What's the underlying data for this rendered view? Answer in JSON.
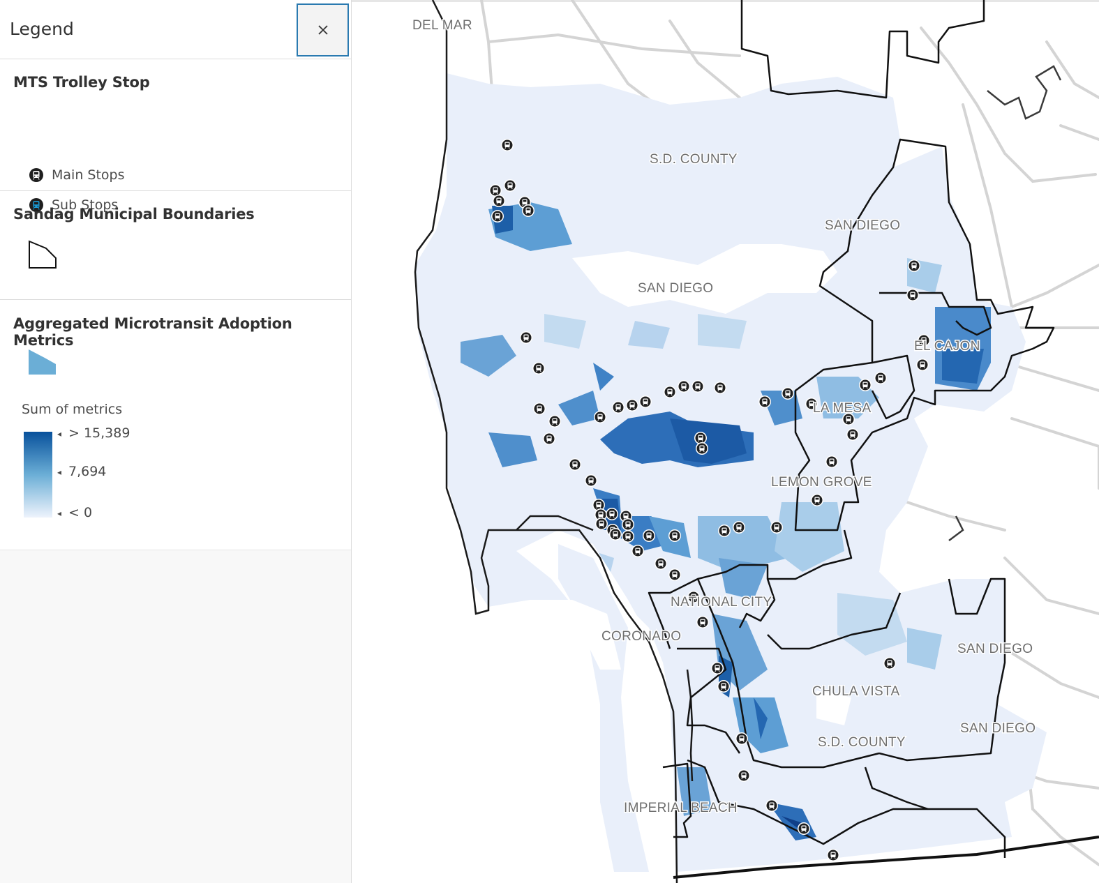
{
  "legend": {
    "title": "Legend",
    "close_icon": "close-icon",
    "layers": {
      "trolley": {
        "title": "MTS Trolley Stop",
        "items": [
          {
            "label": "Main Stops",
            "icon": "trolley-icon",
            "color": "#1f1f1f"
          },
          {
            "label": "Sub Stops",
            "icon": "trolley-icon",
            "color": "#1a9bd6"
          }
        ]
      },
      "boundaries": {
        "title": "Sandag Municipal Boundaries",
        "icon": "polygon-outline-icon"
      },
      "metrics": {
        "title": "Aggregated Microtransit Adoption Metrics",
        "icon": "polygon-fill-icon",
        "field_label": "Sum of metrics",
        "ramp": {
          "high_label": "> 15,389",
          "mid_label": "7,694",
          "low_label": "< 0",
          "high_color": "#08519c",
          "mid_color": "#6baed6",
          "low_color": "#eef3fc"
        }
      }
    }
  },
  "map": {
    "background_color": "#ffffff",
    "region_color": "#e8eefa",
    "boundary_color": "#1a1a1a",
    "road_color": "#d2d2d2",
    "place_labels": [
      "DEL MAR",
      "S.D. COUNTY",
      "SAN DIEGO",
      "SAN DIEGO",
      "EL CAJON",
      "LA MESA",
      "LEMON GROVE",
      "NATIONAL CITY",
      "CORONADO",
      "SAN DIEGO",
      "CHULA VISTA",
      "SAN DIEGO",
      "S.D. COUNTY",
      "IMPERIAL BEACH"
    ]
  }
}
